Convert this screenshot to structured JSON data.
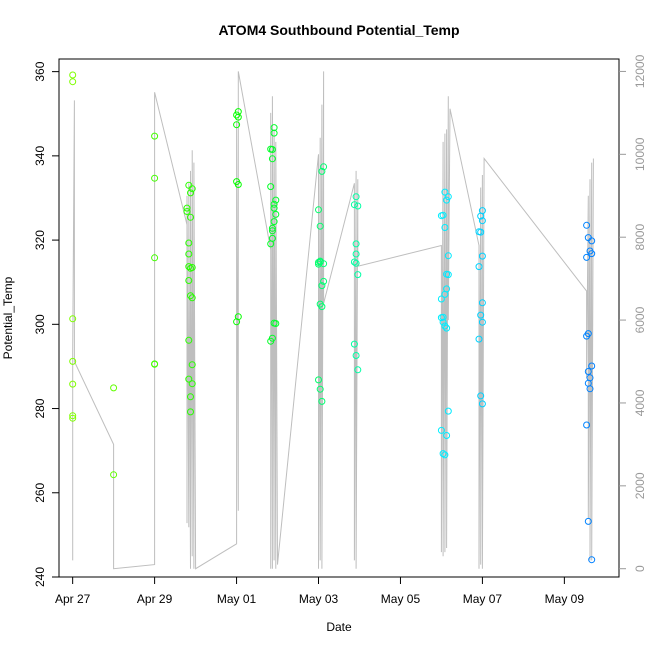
{
  "chart_data": {
    "type": "scatter",
    "title": "ATOM4 Southbound Potential_Temp",
    "xlabel": "Date",
    "ylabel": "Potential_Temp",
    "x_axis": {
      "range": [
        "2016-04-26T16:00",
        "2016-05-10T08:00"
      ],
      "ticks": [
        {
          "date": "2016-04-27",
          "label": "Apr 27"
        },
        {
          "date": "2016-04-29",
          "label": "Apr 29"
        },
        {
          "date": "2016-05-01",
          "label": "May 01"
        },
        {
          "date": "2016-05-03",
          "label": "May 03"
        },
        {
          "date": "2016-05-05",
          "label": "May 05"
        },
        {
          "date": "2016-05-07",
          "label": "May 07"
        },
        {
          "date": "2016-05-09",
          "label": "May 09"
        }
      ]
    },
    "y_axis": {
      "range": [
        240,
        363
      ],
      "ticks": [
        "240",
        "260",
        "280",
        "300",
        "320",
        "340",
        "360"
      ]
    },
    "y2_axis": {
      "range": [
        -200,
        12300
      ],
      "ticks": [
        "0",
        "2000",
        "4000",
        "6000",
        "8000",
        "10000",
        "12000"
      ],
      "color": "#999999"
    },
    "grid": false,
    "legend": "none",
    "points_series": {
      "name": "",
      "color_scale": [
        "#7FFF00",
        "#00FF00",
        "#00FFFF",
        "#0080FF"
      ],
      "points": [
        {
          "x": "2016-04-27T00:00",
          "y": 359.2
        },
        {
          "x": "2016-04-27T00:00",
          "y": 357.6
        },
        {
          "x": "2016-04-27T00:00",
          "y": 301.3
        },
        {
          "x": "2016-04-27T00:00",
          "y": 291.2
        },
        {
          "x": "2016-04-27T00:00",
          "y": 285.8
        },
        {
          "x": "2016-04-27T00:00",
          "y": 278.3
        },
        {
          "x": "2016-04-27T00:00",
          "y": 277.7
        },
        {
          "x": "2016-04-28T00:00",
          "y": 284.9
        },
        {
          "x": "2016-04-28T00:00",
          "y": 264.3
        },
        {
          "x": "2016-04-29T00:00",
          "y": 344.7
        },
        {
          "x": "2016-04-29T00:00",
          "y": 334.7
        },
        {
          "x": "2016-04-29T00:00",
          "y": 315.8
        },
        {
          "x": "2016-04-29T00:00",
          "y": 290.6
        },
        {
          "x": "2016-04-29T00:00",
          "y": 290.5
        },
        {
          "x": "2016-04-29T19:00",
          "y": 327.6
        },
        {
          "x": "2016-04-29T19:00",
          "y": 326.8
        },
        {
          "x": "2016-04-29T20:00",
          "y": 333.0
        },
        {
          "x": "2016-04-29T20:00",
          "y": 319.3
        },
        {
          "x": "2016-04-29T20:00",
          "y": 316.7
        },
        {
          "x": "2016-04-29T20:00",
          "y": 313.7
        },
        {
          "x": "2016-04-29T20:00",
          "y": 310.4
        },
        {
          "x": "2016-04-29T20:00",
          "y": 296.2
        },
        {
          "x": "2016-04-29T20:00",
          "y": 287.0
        },
        {
          "x": "2016-04-29T21:00",
          "y": 331.2
        },
        {
          "x": "2016-04-29T21:00",
          "y": 325.4
        },
        {
          "x": "2016-04-29T21:00",
          "y": 313.3
        },
        {
          "x": "2016-04-29T21:00",
          "y": 306.8
        },
        {
          "x": "2016-04-29T21:00",
          "y": 282.8
        },
        {
          "x": "2016-04-29T21:00",
          "y": 279.2
        },
        {
          "x": "2016-04-29T22:00",
          "y": 332.2
        },
        {
          "x": "2016-04-29T22:00",
          "y": 313.5
        },
        {
          "x": "2016-04-29T22:00",
          "y": 306.3
        },
        {
          "x": "2016-04-29T22:00",
          "y": 290.4
        },
        {
          "x": "2016-04-29T22:00",
          "y": 285.9
        },
        {
          "x": "2016-05-01T00:00",
          "y": 349.7
        },
        {
          "x": "2016-05-01T00:00",
          "y": 347.4
        },
        {
          "x": "2016-05-01T00:00",
          "y": 333.9
        },
        {
          "x": "2016-05-01T00:00",
          "y": 300.6
        },
        {
          "x": "2016-05-01T01:00",
          "y": 350.5
        },
        {
          "x": "2016-05-01T01:00",
          "y": 349.2
        },
        {
          "x": "2016-05-01T01:00",
          "y": 333.2
        },
        {
          "x": "2016-05-01T01:00",
          "y": 301.8
        },
        {
          "x": "2016-05-01T20:00",
          "y": 341.6
        },
        {
          "x": "2016-05-01T20:00",
          "y": 332.7
        },
        {
          "x": "2016-05-01T20:00",
          "y": 319.1
        },
        {
          "x": "2016-05-01T20:00",
          "y": 296.0
        },
        {
          "x": "2016-05-01T21:00",
          "y": 341.5
        },
        {
          "x": "2016-05-01T21:00",
          "y": 339.3
        },
        {
          "x": "2016-05-01T21:00",
          "y": 322.8
        },
        {
          "x": "2016-05-01T21:00",
          "y": 322.2
        },
        {
          "x": "2016-05-01T21:00",
          "y": 320.4
        },
        {
          "x": "2016-05-01T21:00",
          "y": 296.7
        },
        {
          "x": "2016-05-01T22:00",
          "y": 346.7
        },
        {
          "x": "2016-05-01T22:00",
          "y": 345.4
        },
        {
          "x": "2016-05-01T22:00",
          "y": 328.5
        },
        {
          "x": "2016-05-01T22:00",
          "y": 327.6
        },
        {
          "x": "2016-05-01T22:00",
          "y": 324.4
        },
        {
          "x": "2016-05-01T22:00",
          "y": 300.3
        },
        {
          "x": "2016-05-01T23:00",
          "y": 329.5
        },
        {
          "x": "2016-05-01T23:00",
          "y": 326.1
        },
        {
          "x": "2016-05-01T23:00",
          "y": 300.2
        },
        {
          "x": "2016-05-03T00:00",
          "y": 327.2
        },
        {
          "x": "2016-05-03T00:00",
          "y": 314.7
        },
        {
          "x": "2016-05-03T00:00",
          "y": 314.3
        },
        {
          "x": "2016-05-03T00:00",
          "y": 286.8
        },
        {
          "x": "2016-05-03T01:00",
          "y": 323.3
        },
        {
          "x": "2016-05-03T01:00",
          "y": 315.0
        },
        {
          "x": "2016-05-03T01:00",
          "y": 314.8
        },
        {
          "x": "2016-05-03T01:00",
          "y": 304.8
        },
        {
          "x": "2016-05-03T01:00",
          "y": 284.6
        },
        {
          "x": "2016-05-03T02:00",
          "y": 336.3
        },
        {
          "x": "2016-05-03T02:00",
          "y": 309.2
        },
        {
          "x": "2016-05-03T02:00",
          "y": 304.2
        },
        {
          "x": "2016-05-03T02:00",
          "y": 281.7
        },
        {
          "x": "2016-05-03T03:00",
          "y": 337.4
        },
        {
          "x": "2016-05-03T03:00",
          "y": 314.4
        },
        {
          "x": "2016-05-03T03:00",
          "y": 310.2
        },
        {
          "x": "2016-05-03T21:00",
          "y": 328.4
        },
        {
          "x": "2016-05-03T21:00",
          "y": 314.8
        },
        {
          "x": "2016-05-03T21:00",
          "y": 295.3
        },
        {
          "x": "2016-05-03T22:00",
          "y": 330.3
        },
        {
          "x": "2016-05-03T22:00",
          "y": 319.1
        },
        {
          "x": "2016-05-03T22:00",
          "y": 316.7
        },
        {
          "x": "2016-05-03T22:00",
          "y": 314.5
        },
        {
          "x": "2016-05-03T22:00",
          "y": 292.6
        },
        {
          "x": "2016-05-03T23:00",
          "y": 328.1
        },
        {
          "x": "2016-05-03T23:00",
          "y": 311.8
        },
        {
          "x": "2016-05-03T23:00",
          "y": 289.2
        },
        {
          "x": "2016-05-06T00:00",
          "y": 325.8
        },
        {
          "x": "2016-05-06T00:00",
          "y": 306.0
        },
        {
          "x": "2016-05-06T00:00",
          "y": 301.6
        },
        {
          "x": "2016-05-06T00:00",
          "y": 274.8
        },
        {
          "x": "2016-05-06T01:00",
          "y": 325.9
        },
        {
          "x": "2016-05-06T01:00",
          "y": 301.7
        },
        {
          "x": "2016-05-06T01:00",
          "y": 300.5
        },
        {
          "x": "2016-05-06T01:00",
          "y": 269.3
        },
        {
          "x": "2016-05-06T02:00",
          "y": 331.4
        },
        {
          "x": "2016-05-06T02:00",
          "y": 323.0
        },
        {
          "x": "2016-05-06T02:00",
          "y": 307.1
        },
        {
          "x": "2016-05-06T02:00",
          "y": 299.6
        },
        {
          "x": "2016-05-06T02:00",
          "y": 269.0
        },
        {
          "x": "2016-05-06T03:00",
          "y": 329.5
        },
        {
          "x": "2016-05-06T03:00",
          "y": 311.9
        },
        {
          "x": "2016-05-06T03:00",
          "y": 308.4
        },
        {
          "x": "2016-05-06T03:00",
          "y": 299.1
        },
        {
          "x": "2016-05-06T03:00",
          "y": 273.6
        },
        {
          "x": "2016-05-06T04:00",
          "y": 330.3
        },
        {
          "x": "2016-05-06T04:00",
          "y": 316.3
        },
        {
          "x": "2016-05-06T04:00",
          "y": 311.8
        },
        {
          "x": "2016-05-06T04:00",
          "y": 279.4
        },
        {
          "x": "2016-05-06T22:00",
          "y": 322.0
        },
        {
          "x": "2016-05-06T22:00",
          "y": 313.7
        },
        {
          "x": "2016-05-06T22:00",
          "y": 296.5
        },
        {
          "x": "2016-05-06T23:00",
          "y": 325.7
        },
        {
          "x": "2016-05-06T23:00",
          "y": 321.9
        },
        {
          "x": "2016-05-06T23:00",
          "y": 302.2
        },
        {
          "x": "2016-05-06T23:00",
          "y": 283.0
        },
        {
          "x": "2016-05-07T00:00",
          "y": 327.0
        },
        {
          "x": "2016-05-07T00:00",
          "y": 324.6
        },
        {
          "x": "2016-05-07T00:00",
          "y": 316.2
        },
        {
          "x": "2016-05-07T00:00",
          "y": 305.1
        },
        {
          "x": "2016-05-07T00:00",
          "y": 300.5
        },
        {
          "x": "2016-05-07T00:00",
          "y": 281.1
        },
        {
          "x": "2016-05-09T13:00",
          "y": 323.5
        },
        {
          "x": "2016-05-09T13:00",
          "y": 315.9
        },
        {
          "x": "2016-05-09T13:00",
          "y": 297.2
        },
        {
          "x": "2016-05-09T13:00",
          "y": 276.1
        },
        {
          "x": "2016-05-09T14:00",
          "y": 320.6
        },
        {
          "x": "2016-05-09T14:00",
          "y": 297.8
        },
        {
          "x": "2016-05-09T14:00",
          "y": 288.8
        },
        {
          "x": "2016-05-09T14:00",
          "y": 286.0
        },
        {
          "x": "2016-05-09T14:00",
          "y": 253.2
        },
        {
          "x": "2016-05-09T15:00",
          "y": 317.4
        },
        {
          "x": "2016-05-09T15:00",
          "y": 287.3
        },
        {
          "x": "2016-05-09T15:00",
          "y": 284.7
        },
        {
          "x": "2016-05-09T16:00",
          "y": 319.8
        },
        {
          "x": "2016-05-09T16:00",
          "y": 316.8
        },
        {
          "x": "2016-05-09T16:00",
          "y": 290.1
        },
        {
          "x": "2016-05-09T16:00",
          "y": 244.1
        }
      ]
    },
    "line_series": {
      "name": "",
      "axis": "right",
      "color": "#bebebe",
      "points": [
        {
          "x": "2016-04-27T00:00",
          "y": 200
        },
        {
          "x": "2016-04-27T00:00",
          "y": 5200
        },
        {
          "x": "2016-04-27T01:00",
          "y": 11300
        },
        {
          "x": "2016-04-27T01:00",
          "y": 5000
        },
        {
          "x": "2016-04-28T00:00",
          "y": 3000
        },
        {
          "x": "2016-04-28T00:00",
          "y": 0
        },
        {
          "x": "2016-04-29T00:00",
          "y": 100
        },
        {
          "x": "2016-04-29T00:00",
          "y": 11500
        },
        {
          "x": "2016-04-29T19:00",
          "y": 8300
        },
        {
          "x": "2016-04-29T19:00",
          "y": 1100
        },
        {
          "x": "2016-04-29T19:00",
          "y": 9000
        },
        {
          "x": "2016-04-29T20:00",
          "y": 1000
        },
        {
          "x": "2016-04-29T20:00",
          "y": 9300
        },
        {
          "x": "2016-04-29T21:00",
          "y": 0
        },
        {
          "x": "2016-04-29T21:00",
          "y": 9600
        },
        {
          "x": "2016-04-29T22:00",
          "y": 300
        },
        {
          "x": "2016-04-29T22:00",
          "y": 10100
        },
        {
          "x": "2016-04-29T23:00",
          "y": 0
        },
        {
          "x": "2016-04-29T23:00",
          "y": 9800
        },
        {
          "x": "2016-04-30T00:00",
          "y": 0
        },
        {
          "x": "2016-05-01T00:00",
          "y": 600
        },
        {
          "x": "2016-05-01T00:00",
          "y": 10800
        },
        {
          "x": "2016-05-01T01:00",
          "y": 1400
        },
        {
          "x": "2016-05-01T01:00",
          "y": 12000
        },
        {
          "x": "2016-05-01T20:00",
          "y": 7700
        },
        {
          "x": "2016-05-01T20:00",
          "y": 0
        },
        {
          "x": "2016-05-01T20:00",
          "y": 11000
        },
        {
          "x": "2016-05-01T21:00",
          "y": 0
        },
        {
          "x": "2016-05-01T21:00",
          "y": 11400
        },
        {
          "x": "2016-05-01T22:00",
          "y": 200
        },
        {
          "x": "2016-05-01T22:00",
          "y": 10600
        },
        {
          "x": "2016-05-01T23:00",
          "y": 0
        },
        {
          "x": "2016-05-01T23:00",
          "y": 10300
        },
        {
          "x": "2016-05-02T00:00",
          "y": 100
        },
        {
          "x": "2016-05-03T00:00",
          "y": 10000
        },
        {
          "x": "2016-05-03T00:00",
          "y": 0
        },
        {
          "x": "2016-05-03T01:00",
          "y": 10400
        },
        {
          "x": "2016-05-03T01:00",
          "y": 200
        },
        {
          "x": "2016-05-03T02:00",
          "y": 11200
        },
        {
          "x": "2016-05-03T02:00",
          "y": 0
        },
        {
          "x": "2016-05-03T03:00",
          "y": 12000
        },
        {
          "x": "2016-05-03T03:00",
          "y": 6400
        },
        {
          "x": "2016-05-03T21:00",
          "y": 9300
        },
        {
          "x": "2016-05-03T21:00",
          "y": 200
        },
        {
          "x": "2016-05-03T22:00",
          "y": 9600
        },
        {
          "x": "2016-05-03T22:00",
          "y": 0
        },
        {
          "x": "2016-05-03T23:00",
          "y": 9400
        },
        {
          "x": "2016-05-03T23:00",
          "y": 7300
        },
        {
          "x": "2016-05-06T00:00",
          "y": 7800
        },
        {
          "x": "2016-05-06T00:00",
          "y": 400
        },
        {
          "x": "2016-05-06T01:00",
          "y": 10300
        },
        {
          "x": "2016-05-06T01:00",
          "y": 300
        },
        {
          "x": "2016-05-06T02:00",
          "y": 10500
        },
        {
          "x": "2016-05-06T02:00",
          "y": 400
        },
        {
          "x": "2016-05-06T03:00",
          "y": 10600
        },
        {
          "x": "2016-05-06T03:00",
          "y": 500
        },
        {
          "x": "2016-05-06T04:00",
          "y": 11400
        },
        {
          "x": "2016-05-06T04:00",
          "y": 6000
        },
        {
          "x": "2016-05-06T05:00",
          "y": 11100
        },
        {
          "x": "2016-05-06T22:00",
          "y": 7800
        },
        {
          "x": "2016-05-06T22:00",
          "y": 0
        },
        {
          "x": "2016-05-06T23:00",
          "y": 9200
        },
        {
          "x": "2016-05-06T23:00",
          "y": 100
        },
        {
          "x": "2016-05-07T00:00",
          "y": 9500
        },
        {
          "x": "2016-05-07T00:00",
          "y": 0
        },
        {
          "x": "2016-05-07T01:00",
          "y": 9900
        },
        {
          "x": "2016-05-09T13:00",
          "y": 6700
        },
        {
          "x": "2016-05-09T13:00",
          "y": 4600
        },
        {
          "x": "2016-05-09T14:00",
          "y": 9000
        },
        {
          "x": "2016-05-09T14:00",
          "y": 1200
        },
        {
          "x": "2016-05-09T15:00",
          "y": 9400
        },
        {
          "x": "2016-05-09T15:00",
          "y": 200
        },
        {
          "x": "2016-05-09T16:00",
          "y": 9800
        },
        {
          "x": "2016-05-09T16:00",
          "y": 200
        },
        {
          "x": "2016-05-09T17:00",
          "y": 9900
        }
      ]
    }
  }
}
